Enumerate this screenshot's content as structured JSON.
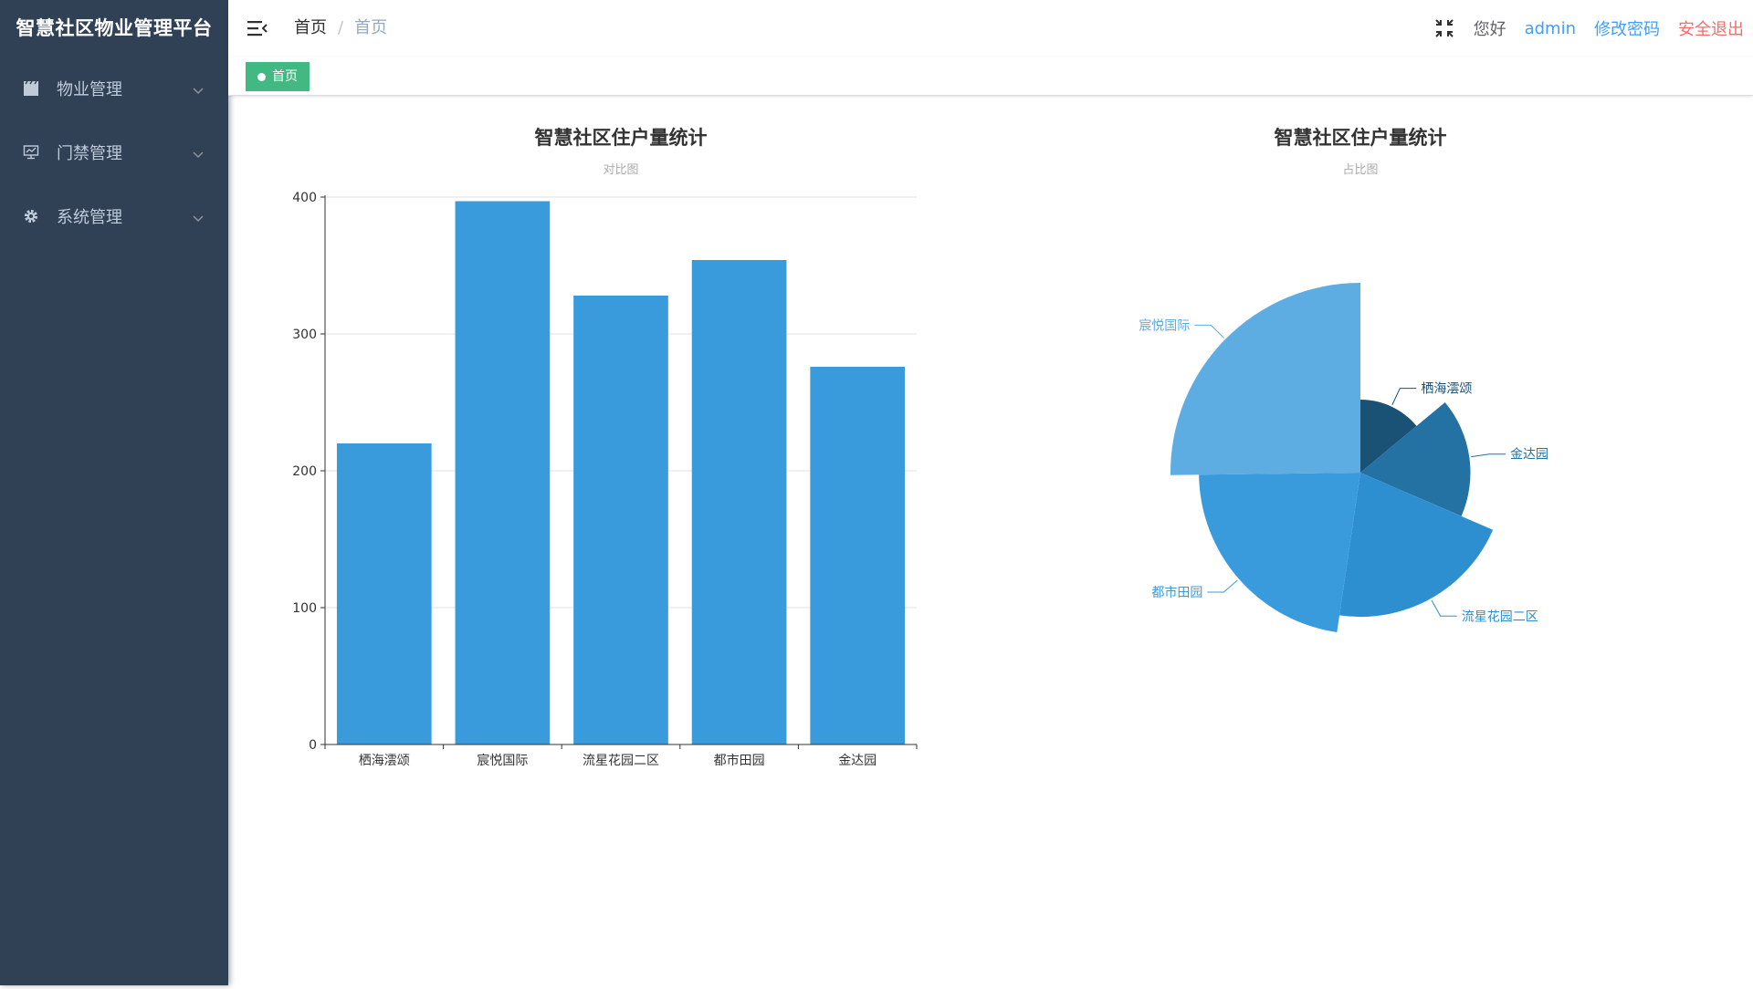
{
  "sidebar": {
    "title": "智慧社区物业管理平台",
    "items": [
      {
        "label": "物业管理",
        "icon": "clapperboard-icon"
      },
      {
        "label": "门禁管理",
        "icon": "monitor-icon"
      },
      {
        "label": "系统管理",
        "icon": "gear-icon"
      }
    ]
  },
  "header": {
    "breadcrumb": {
      "home": "首页",
      "separator": "/",
      "current": "首页"
    },
    "greeting": "您好",
    "username": "admin",
    "change_password": "修改密码",
    "logout": "安全退出"
  },
  "tags": [
    {
      "label": "首页",
      "active": true
    }
  ],
  "colors": {
    "sidebar_bg": "#304156",
    "bar": "#3a9bdc",
    "link": "#409eff",
    "danger": "#f56c6c",
    "tag": "#42b983"
  },
  "chart_data": [
    {
      "type": "bar",
      "title": "智慧社区住户量统计",
      "subtitle": "对比图",
      "categories": [
        "栖海澐颂",
        "宸悦国际",
        "流星花园二区",
        "都市田园",
        "金达园"
      ],
      "values": [
        220,
        397,
        328,
        354,
        276
      ],
      "ylim": [
        0,
        400
      ],
      "yticks": [
        0,
        100,
        200,
        300,
        400
      ],
      "grid": true
    },
    {
      "type": "pie",
      "variant": "rose-radius",
      "title": "智慧社区住户量统计",
      "subtitle": "占比图",
      "categories": [
        "栖海澐颂",
        "宸悦国际",
        "流星花园二区",
        "都市田园",
        "金达园"
      ],
      "values": [
        220,
        397,
        328,
        354,
        276
      ],
      "slice_colors": [
        "#1a5276",
        "#5dade2",
        "#2e8fd0",
        "#3a9bdc",
        "#2471a3"
      ]
    }
  ]
}
